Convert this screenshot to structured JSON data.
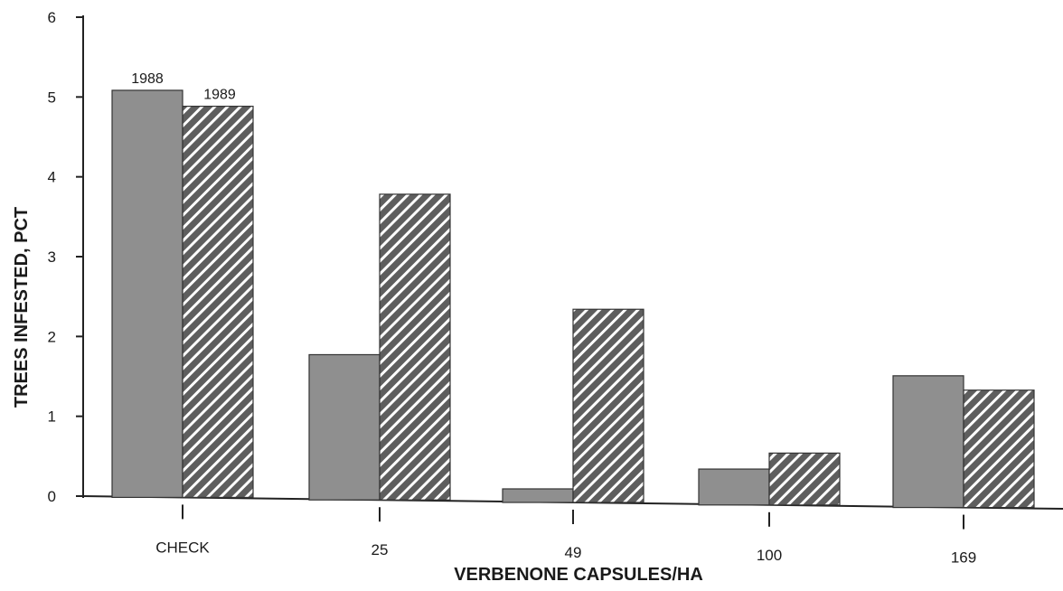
{
  "chart_data": {
    "type": "bar",
    "categories": [
      "CHECK",
      "25",
      "49",
      "100",
      "169"
    ],
    "series": [
      {
        "name": "1988",
        "values": [
          5.1,
          1.82,
          0.17,
          0.45,
          1.65
        ],
        "fill": "#8f8f8f",
        "pattern": "solid"
      },
      {
        "name": "1989",
        "values": [
          4.9,
          3.83,
          2.42,
          0.65,
          1.47
        ],
        "fill": "#6e6e6e",
        "pattern": "diagonal-hatch"
      }
    ],
    "title": "",
    "xlabel": "VERBENONE CAPSULES/HA",
    "ylabel": "TREES INFESTED, PCT",
    "ylim": [
      0,
      6
    ],
    "yticks": [
      "0",
      "1",
      "2",
      "3",
      "4",
      "5",
      "6"
    ],
    "grid": false,
    "legend": "series names printed above first bar pair"
  }
}
